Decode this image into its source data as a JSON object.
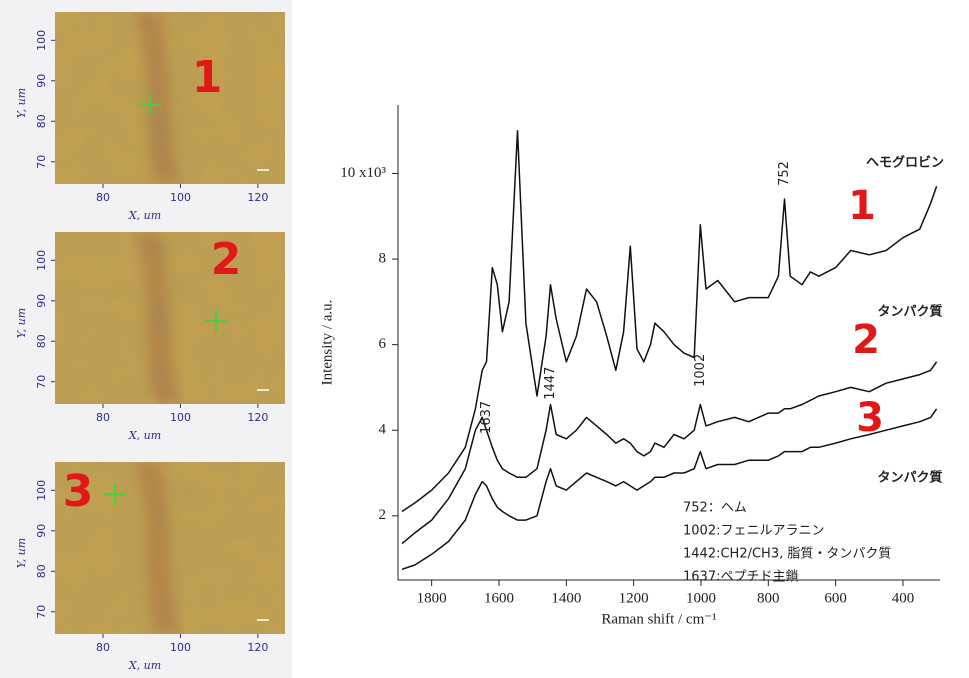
{
  "chart_data": [
    {
      "type": "image",
      "label": "1",
      "xlabel": "X, um",
      "ylabel": "Y, um",
      "xlim": [
        67.6,
        127
      ],
      "ylim": [
        64.5,
        107
      ],
      "xticks": [
        80,
        100,
        120
      ],
      "yticks": [
        70,
        80,
        90,
        100
      ],
      "marker": {
        "x": 92.1,
        "y": 84,
        "color": "#4ccc40"
      }
    },
    {
      "type": "image",
      "label": "2",
      "xlabel": "X, um",
      "ylabel": "Y, um",
      "xlim": [
        67.6,
        127
      ],
      "ylim": [
        64.5,
        107
      ],
      "xticks": [
        80,
        100,
        120
      ],
      "yticks": [
        70,
        80,
        90,
        100
      ],
      "marker": {
        "x": 109.2,
        "y": 85,
        "color": "#4ccc40"
      }
    },
    {
      "type": "image",
      "label": "3",
      "xlabel": "X, um",
      "ylabel": "Y, um",
      "xlim": [
        67.6,
        127
      ],
      "ylim": [
        64.5,
        107
      ],
      "xticks": [
        80,
        100,
        120
      ],
      "yticks": [
        70,
        80,
        90,
        100
      ],
      "marker": {
        "x": 83.1,
        "y": 99,
        "color": "#4ccc40"
      }
    },
    {
      "type": "line",
      "xlabel": "Raman shift / cm⁻¹",
      "ylabel": "Intensity / a.u.",
      "xlim": [
        1900,
        290
      ],
      "ylim": [
        0.5,
        11.6
      ],
      "xticks": [
        1800,
        1600,
        1400,
        1200,
        1000,
        800,
        600,
        400
      ],
      "yticks": [
        2,
        4,
        6,
        8,
        {
          "value": 10,
          "label": "10 x10³"
        }
      ],
      "x": [
        1888,
        1850,
        1800,
        1750,
        1700,
        1670,
        1650,
        1637,
        1620,
        1605,
        1590,
        1570,
        1545,
        1520,
        1487,
        1460,
        1447,
        1430,
        1400,
        1370,
        1340,
        1310,
        1280,
        1253,
        1230,
        1210,
        1190,
        1170,
        1150,
        1137,
        1110,
        1080,
        1050,
        1020,
        1002,
        985,
        950,
        900,
        858,
        800,
        770,
        752,
        735,
        700,
        675,
        650,
        600,
        555,
        500,
        450,
        400,
        350,
        318,
        300
      ],
      "series": [
        {
          "name": "1",
          "color": "#111111",
          "values": [
            2.1,
            2.3,
            2.6,
            3.0,
            3.6,
            4.5,
            5.4,
            5.6,
            7.8,
            7.4,
            6.3,
            7.0,
            11.0,
            6.5,
            4.8,
            6.2,
            7.4,
            6.6,
            5.6,
            6.2,
            7.3,
            7.0,
            6.2,
            5.4,
            6.3,
            8.3,
            5.9,
            5.6,
            6.0,
            6.5,
            6.3,
            6.0,
            5.8,
            5.7,
            8.8,
            7.3,
            7.5,
            7.0,
            7.1,
            7.1,
            7.6,
            9.4,
            7.6,
            7.4,
            7.7,
            7.6,
            7.8,
            8.2,
            8.1,
            8.2,
            8.5,
            8.7,
            9.3,
            9.7
          ]
        },
        {
          "name": "2",
          "color": "#111111",
          "values": [
            1.35,
            1.6,
            1.9,
            2.4,
            3.1,
            4.0,
            4.3,
            4.0,
            3.6,
            3.3,
            3.1,
            3.0,
            2.9,
            2.9,
            3.1,
            4.0,
            4.6,
            3.9,
            3.8,
            4.0,
            4.3,
            4.1,
            3.9,
            3.7,
            3.8,
            3.7,
            3.5,
            3.4,
            3.5,
            3.7,
            3.6,
            3.9,
            3.8,
            4.0,
            4.6,
            4.1,
            4.2,
            4.3,
            4.2,
            4.4,
            4.4,
            4.5,
            4.5,
            4.6,
            4.7,
            4.8,
            4.9,
            5.0,
            4.9,
            5.1,
            5.2,
            5.3,
            5.4,
            5.6
          ]
        },
        {
          "name": "3",
          "color": "#111111",
          "values": [
            0.75,
            0.85,
            1.1,
            1.4,
            1.9,
            2.5,
            2.8,
            2.7,
            2.4,
            2.2,
            2.1,
            2.0,
            1.9,
            1.9,
            2.0,
            2.8,
            3.1,
            2.7,
            2.6,
            2.8,
            3.0,
            2.9,
            2.8,
            2.7,
            2.8,
            2.7,
            2.6,
            2.7,
            2.8,
            2.9,
            2.9,
            3.0,
            3.0,
            3.1,
            3.5,
            3.1,
            3.2,
            3.2,
            3.3,
            3.3,
            3.4,
            3.5,
            3.5,
            3.5,
            3.6,
            3.6,
            3.7,
            3.8,
            3.9,
            4.0,
            4.1,
            4.2,
            4.3,
            4.5
          ]
        }
      ],
      "peak_labels": [
        {
          "x": 1637,
          "y": 4.3
        },
        {
          "x": 1447,
          "y": 5.1
        },
        {
          "x": 1002,
          "y": 5.4
        },
        {
          "x": 752,
          "y": 10.0
        }
      ],
      "annotations": [
        "ヘモグロビン",
        "タンパク質",
        "タンパク質"
      ],
      "notes": [
        "752：ヘム",
        "1002:フェニルアラニン",
        "1442:CH2/CH3, 脂質・タンパク質",
        "1637:ペプチド主鎖"
      ]
    }
  ]
}
